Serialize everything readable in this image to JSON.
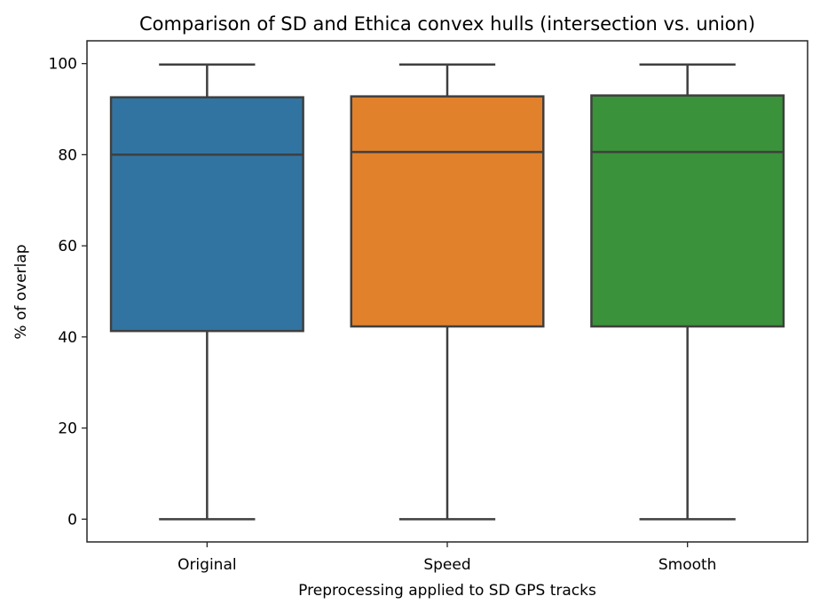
{
  "chart_data": {
    "type": "box",
    "title": "Comparison of SD and Ethica convex hulls (intersection vs. union)",
    "xlabel": "Preprocessing applied to SD GPS tracks",
    "ylabel": "% of overlap",
    "ylim": [
      -5,
      105
    ],
    "yticks": [
      0,
      20,
      40,
      60,
      80,
      100
    ],
    "ytick_labels": [
      "0",
      "20",
      "40",
      "60",
      "80",
      "100"
    ],
    "categories": [
      "Original",
      "Speed",
      "Smooth"
    ],
    "boxes": [
      {
        "category": "Original",
        "whisker_low": 0,
        "q1": 41.3,
        "median": 80.0,
        "q3": 92.6,
        "whisker_high": 99.8,
        "color": "#3274a1"
      },
      {
        "category": "Speed",
        "whisker_low": 0,
        "q1": 42.3,
        "median": 80.6,
        "q3": 92.8,
        "whisker_high": 99.8,
        "color": "#e1812c"
      },
      {
        "category": "Smooth",
        "whisker_low": 0,
        "q1": 42.3,
        "median": 80.6,
        "q3": 93.0,
        "whisker_high": 99.8,
        "color": "#3a923a"
      }
    ],
    "grid": false,
    "legend": "none"
  }
}
